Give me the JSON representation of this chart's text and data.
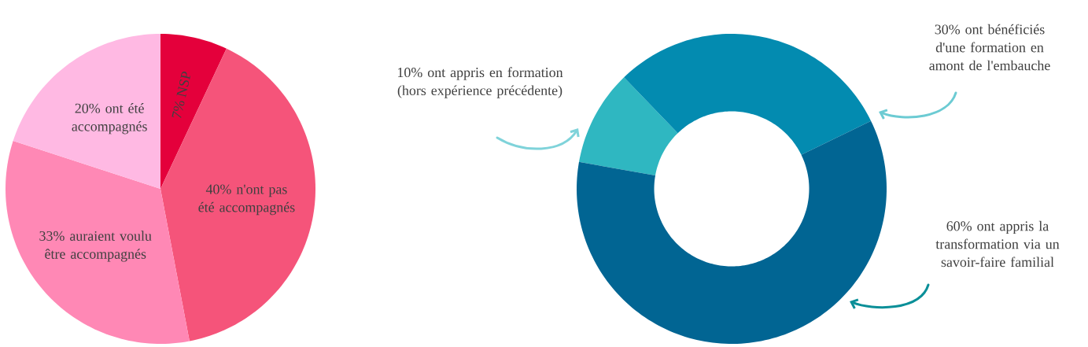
{
  "chart_data": [
    {
      "type": "pie",
      "categories": [
        "7% NSP",
        "40% n'ont pas été accompagnés",
        "33%  auraient voulu être accompagnés",
        "20%  ont été accompagnés"
      ],
      "values": [
        7,
        40,
        33,
        20
      ],
      "colors": [
        "#e4003b",
        "#f5547a",
        "#ff88b5",
        "#ffb9e3"
      ]
    },
    {
      "type": "donut",
      "categories": [
        "10% ont appris en formation (hors expérience précédente)",
        "30% ont bénéficiés d'une formation en amont de l'embauche",
        "60% ont appris la transformation via un savoir-faire familial"
      ],
      "values": [
        10,
        30,
        60
      ],
      "colors": [
        "#2fb7c1",
        "#038bb0",
        "#016593"
      ]
    }
  ]
}
